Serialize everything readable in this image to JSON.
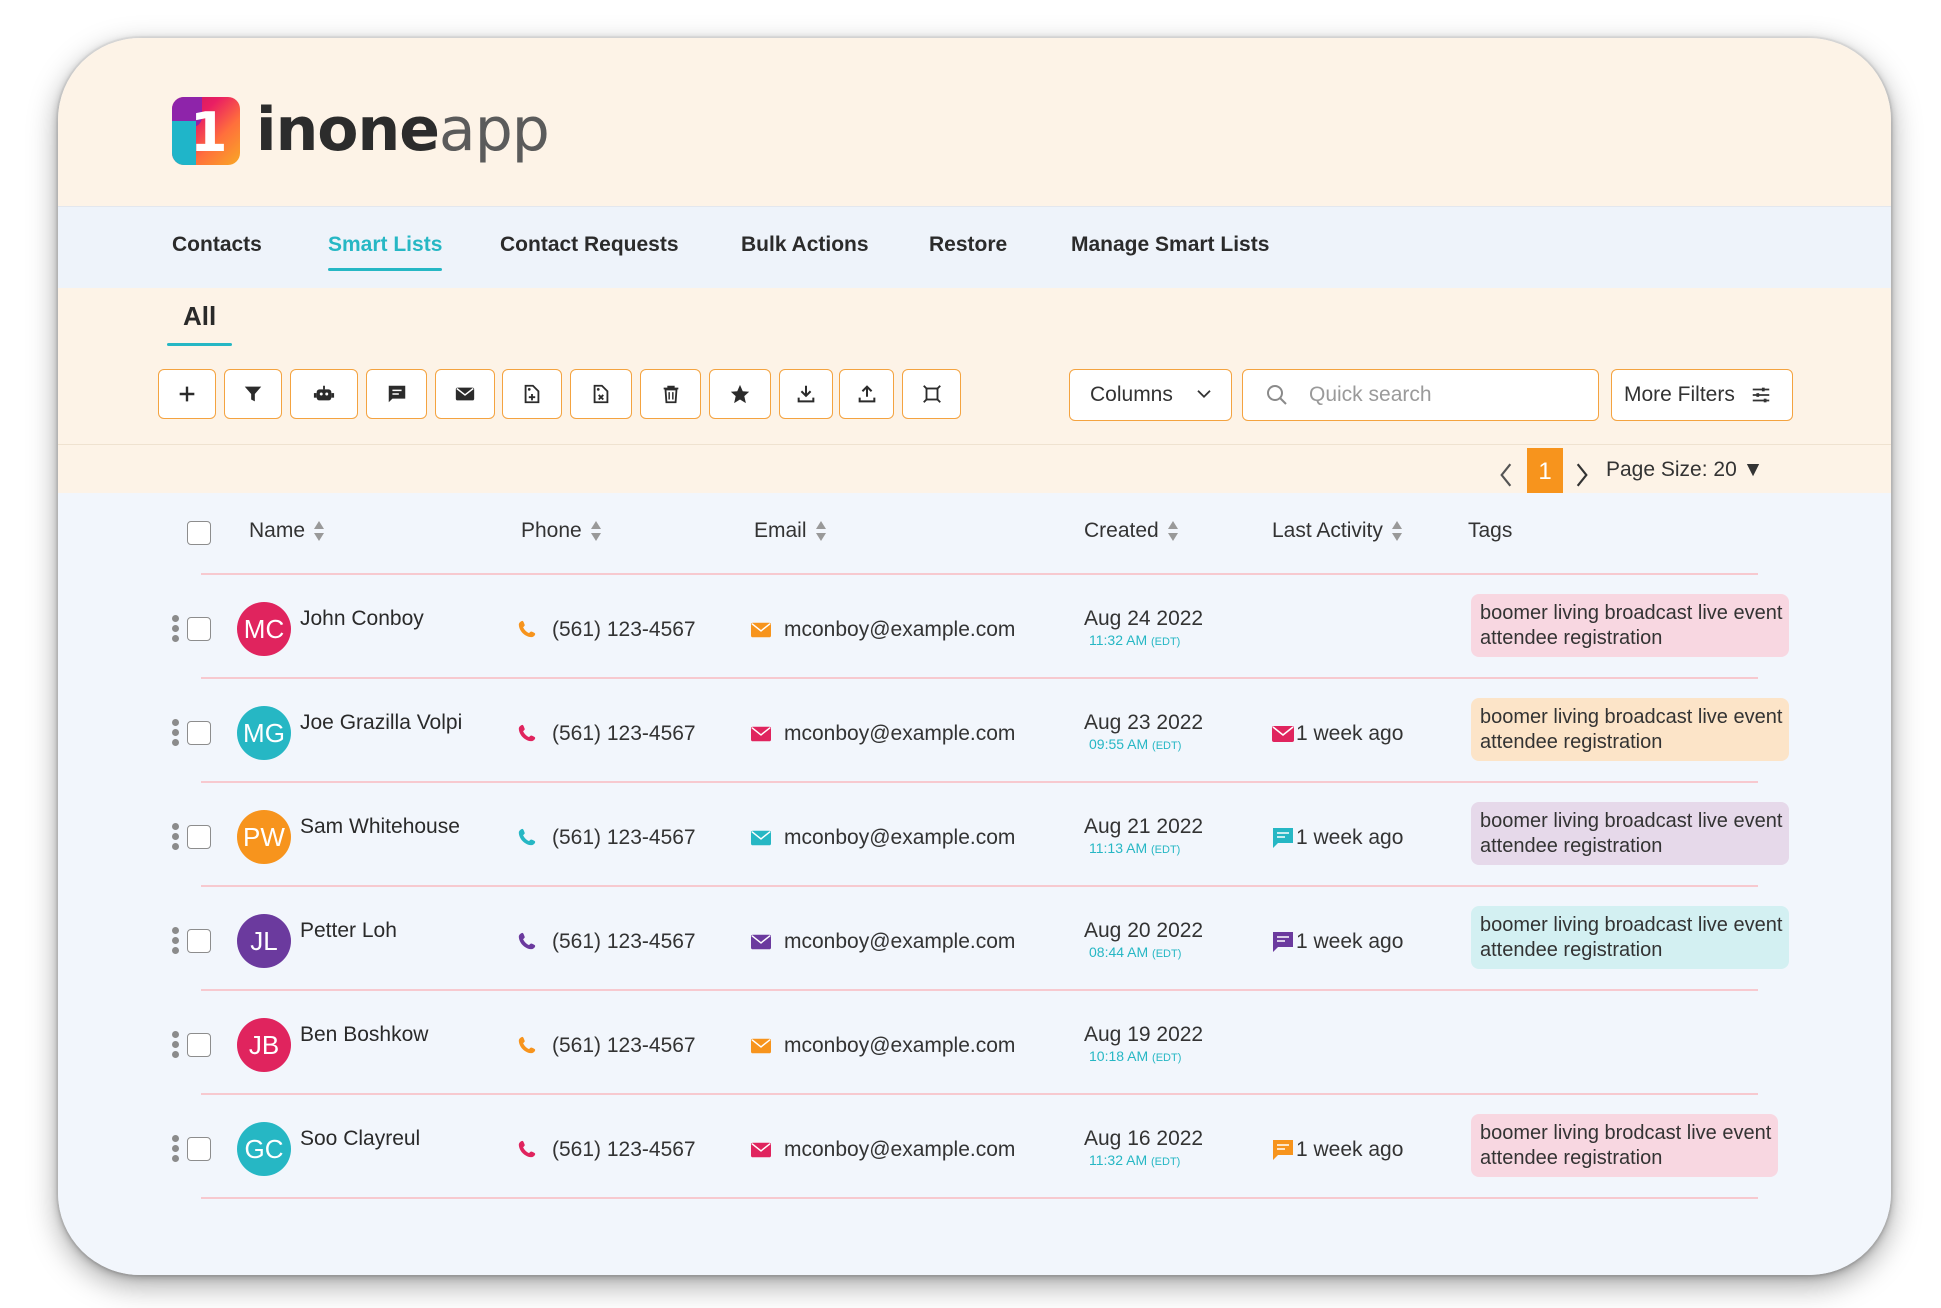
{
  "app": {
    "logo_text_a": "in",
    "logo_text_b": "one",
    "logo_text_c": "app",
    "logo_digit": "1"
  },
  "nav": {
    "items": [
      {
        "label": "Contacts"
      },
      {
        "label": "Smart Lists"
      },
      {
        "label": "Contact Requests"
      },
      {
        "label": "Bulk Actions"
      },
      {
        "label": "Restore"
      },
      {
        "label": "Manage Smart Lists"
      }
    ],
    "active": "Smart Lists"
  },
  "subtab": {
    "label": "All"
  },
  "toolbar": {
    "icons": [
      "add-icon",
      "filter-icon",
      "robot-icon",
      "message-icon",
      "mail-icon",
      "tag-add-icon",
      "tag-remove-icon",
      "trash-icon",
      "star-icon",
      "download-icon",
      "upload-icon",
      "expand-icon"
    ],
    "columns_label": "Columns",
    "search_placeholder": "Quick search",
    "more_filters_label": "More Filters"
  },
  "pager": {
    "current_page": "1",
    "page_size_label": "Page Size: 20 ▼"
  },
  "colors": {
    "accent_teal": "#26b7c4",
    "accent_orange": "#f7941d",
    "button_border": "#f4a340"
  },
  "table": {
    "headers": {
      "name": "Name",
      "phone": "Phone",
      "email": "Email",
      "created": "Created",
      "last_activity": "Last Activity",
      "tags": "Tags"
    },
    "rows": [
      {
        "initials": "MC",
        "avatar_color": "#e0245e",
        "name": "John Conboy",
        "icon_color": "#f7941d",
        "phone": "(561) 123-4567",
        "email": "mconboy@example.com",
        "created": "Aug 24 2022",
        "time": "11:32 AM",
        "tz": "(EDT)",
        "activity": "",
        "activity_icon": "",
        "activity_color": "",
        "tag_line1": "boomer living broadcast live event",
        "tag_line2": "attendee registration",
        "tag_color": "#f8d7e1"
      },
      {
        "initials": "MG",
        "avatar_color": "#26b7c4",
        "name": "Joe Grazilla Volpi",
        "icon_color": "#e0245e",
        "phone": "(561) 123-4567",
        "email": "mconboy@example.com",
        "created": "Aug 23 2022",
        "time": "09:55 AM",
        "tz": "(EDT)",
        "activity": "1 week ago",
        "activity_icon": "mail-icon",
        "activity_color": "#e0245e",
        "tag_line1": "boomer living broadcast live event",
        "tag_line2": "attendee registration",
        "tag_color": "#fce4c8"
      },
      {
        "initials": "PW",
        "avatar_color": "#f7941d",
        "name": "Sam Whitehouse",
        "icon_color": "#26b7c4",
        "phone": "(561) 123-4567",
        "email": "mconboy@example.com",
        "created": "Aug 21 2022",
        "time": "11:13 AM",
        "tz": "(EDT)",
        "activity": "1 week ago",
        "activity_icon": "message-icon",
        "activity_color": "#26b7c4",
        "tag_line1": "boomer living broadcast live event",
        "tag_line2": "attendee registration",
        "tag_color": "#e6d9ea"
      },
      {
        "initials": "JL",
        "avatar_color": "#6b3a9e",
        "name": "Petter Loh",
        "icon_color": "#6b3a9e",
        "phone": "(561) 123-4567",
        "email": "mconboy@example.com",
        "created": "Aug 20 2022",
        "time": "08:44 AM",
        "tz": "(EDT)",
        "activity": "1 week ago",
        "activity_icon": "message-icon",
        "activity_color": "#6b3a9e",
        "tag_line1": "boomer living broadcast live event",
        "tag_line2": "attendee registration",
        "tag_color": "#d3f0f2"
      },
      {
        "initials": "JB",
        "avatar_color": "#e0245e",
        "name": "Ben Boshkow",
        "icon_color": "#f7941d",
        "phone": "(561) 123-4567",
        "email": "mconboy@example.com",
        "created": "Aug 19 2022",
        "time": "10:18 AM",
        "tz": "(EDT)",
        "activity": "",
        "activity_icon": "",
        "activity_color": "",
        "tag_line1": "",
        "tag_line2": "",
        "tag_color": ""
      },
      {
        "initials": "GC",
        "avatar_color": "#26b7c4",
        "name": "Soo Clayreul",
        "icon_color": "#e0245e",
        "phone": "(561) 123-4567",
        "email": "mconboy@example.com",
        "created": "Aug 16 2022",
        "time": "11:32 AM",
        "tz": "(EDT)",
        "activity": "1 week ago",
        "activity_icon": "message-icon",
        "activity_color": "#f7941d",
        "tag_line1": "boomer living brodcast live event",
        "tag_line2": "attendee registration",
        "tag_color": "#f8d7e1"
      }
    ]
  }
}
